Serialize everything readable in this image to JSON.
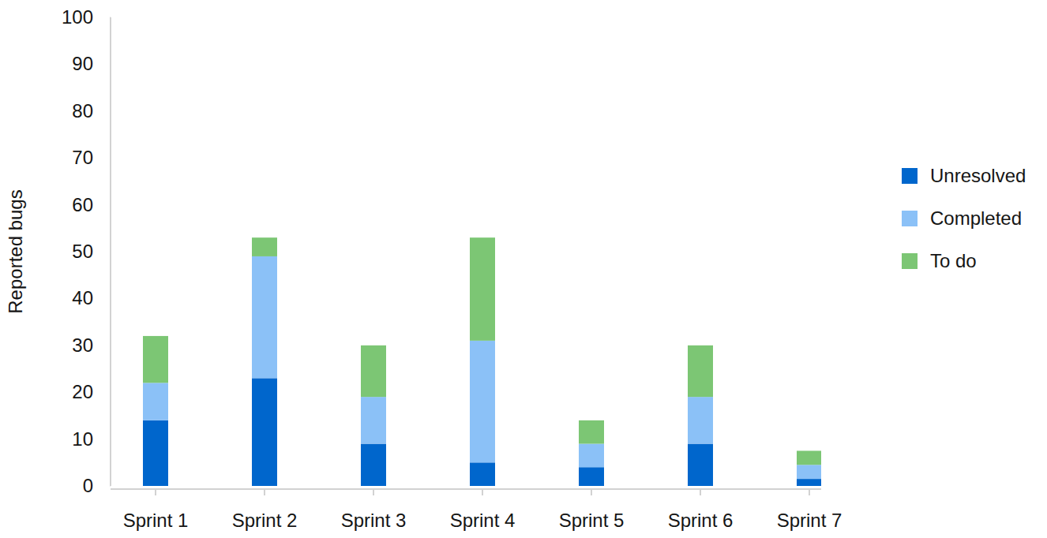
{
  "chart_data": {
    "type": "bar",
    "stacked": true,
    "y_label": "Reported bugs",
    "categories": [
      "Sprint 1",
      "Sprint 2",
      "Sprint 3",
      "Sprint 4",
      "Sprint 5",
      "Sprint 6",
      "Sprint 7"
    ],
    "series": [
      {
        "name": "Unresolved",
        "color": "#0066cc",
        "values": [
          14,
          23,
          9,
          5,
          4,
          9,
          1.5
        ]
      },
      {
        "name": "Completed",
        "color": "#8bc1f7",
        "values": [
          8,
          26,
          10,
          26,
          5,
          10,
          3
        ]
      },
      {
        "name": "To do",
        "color": "#7cc674",
        "values": [
          10,
          4,
          11,
          22,
          5,
          11,
          3
        ]
      }
    ],
    "ylim": [
      0,
      100
    ],
    "yticks": [
      0,
      10,
      20,
      30,
      40,
      50,
      60,
      70,
      80,
      90,
      100
    ],
    "grid": false,
    "legend": "right"
  }
}
